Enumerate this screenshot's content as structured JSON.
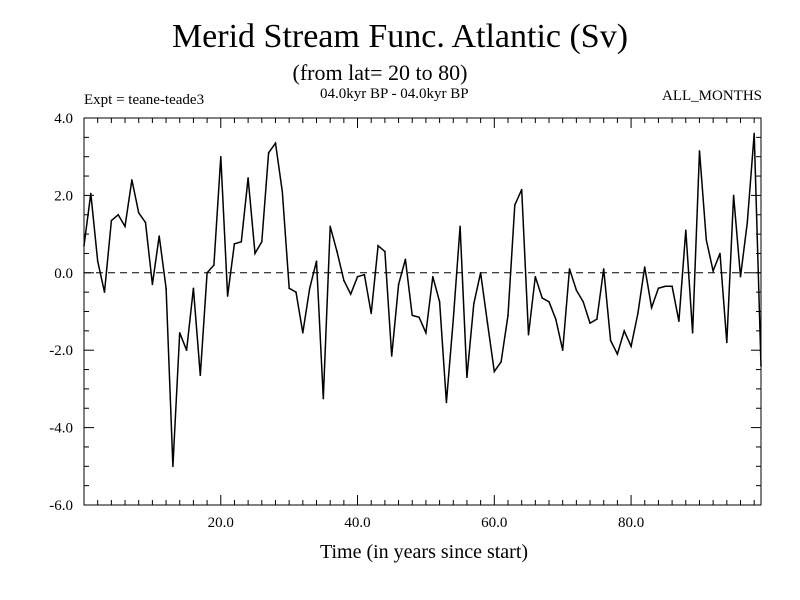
{
  "chart_data": {
    "type": "line",
    "title": "Merid Stream Func. Atlantic (Sv)",
    "subtitle": "(from lat= 20 to 80)",
    "left_header": "Expt = teane-teade3",
    "center_header": "04.0kyr BP - 04.0kyr BP",
    "right_header": "ALL_MONTHS",
    "xlabel": "Time (in years since start)",
    "ylabel": "",
    "xlim": [
      0,
      99
    ],
    "ylim": [
      -6,
      4
    ],
    "xticks": [
      20,
      40,
      60,
      80
    ],
    "xtick_labels": [
      "20.0",
      "40.0",
      "60.0",
      "80.0"
    ],
    "yticks": [
      -6,
      -4,
      -2,
      0,
      2,
      4
    ],
    "ytick_labels": [
      "-6.0",
      "-4.0",
      "-2.0",
      "0.0",
      "2.0",
      "4.0"
    ],
    "reference_line": 0,
    "series": [
      {
        "name": "Merid Stream Func.",
        "x": [
          0,
          1,
          2,
          3,
          4,
          5,
          6,
          7,
          8,
          9,
          10,
          11,
          12,
          13,
          14,
          15,
          16,
          17,
          18,
          19,
          20,
          21,
          22,
          23,
          24,
          25,
          26,
          27,
          28,
          29,
          30,
          31,
          32,
          33,
          34,
          35,
          36,
          37,
          38,
          39,
          40,
          41,
          42,
          43,
          44,
          45,
          46,
          47,
          48,
          49,
          50,
          51,
          52,
          53,
          54,
          55,
          56,
          57,
          58,
          59,
          60,
          61,
          62,
          63,
          64,
          65,
          66,
          67,
          68,
          69,
          70,
          71,
          72,
          73,
          74,
          75,
          76,
          77,
          78,
          79,
          80,
          81,
          82,
          83,
          84,
          85,
          86,
          87,
          88,
          89,
          90,
          91,
          92,
          93,
          94,
          95,
          96,
          97,
          98,
          99
        ],
        "values": [
          0.7,
          2.05,
          0.3,
          -0.5,
          1.35,
          1.5,
          1.2,
          2.4,
          1.55,
          1.3,
          -0.3,
          0.95,
          -0.4,
          -5.0,
          -1.55,
          -2.0,
          -0.4,
          -2.65,
          0.0,
          0.2,
          3.0,
          -0.6,
          0.75,
          0.8,
          2.45,
          0.5,
          0.8,
          3.1,
          3.35,
          2.1,
          -0.4,
          -0.5,
          -1.55,
          -0.4,
          0.3,
          -3.25,
          1.2,
          0.55,
          -0.2,
          -0.55,
          -0.1,
          -0.05,
          -1.05,
          0.7,
          0.55,
          -2.15,
          -0.3,
          0.35,
          -1.1,
          -1.15,
          -1.55,
          -0.1,
          -0.75,
          -3.35,
          -1.2,
          1.2,
          -2.7,
          -0.8,
          0.0,
          -1.3,
          -2.55,
          -2.3,
          -1.1,
          1.75,
          2.15,
          -1.6,
          -0.1,
          -0.65,
          -0.75,
          -1.2,
          -2.0,
          0.1,
          -0.45,
          -0.75,
          -1.3,
          -1.2,
          0.1,
          -1.75,
          -2.1,
          -1.5,
          -1.9,
          -1.05,
          0.15,
          -0.9,
          -0.4,
          -0.35,
          -0.35,
          -1.25,
          1.1,
          -1.55,
          3.15,
          0.85,
          0.05,
          0.5,
          -1.8,
          2.0,
          -0.1,
          1.3,
          3.6,
          -2.4
        ]
      }
    ]
  }
}
